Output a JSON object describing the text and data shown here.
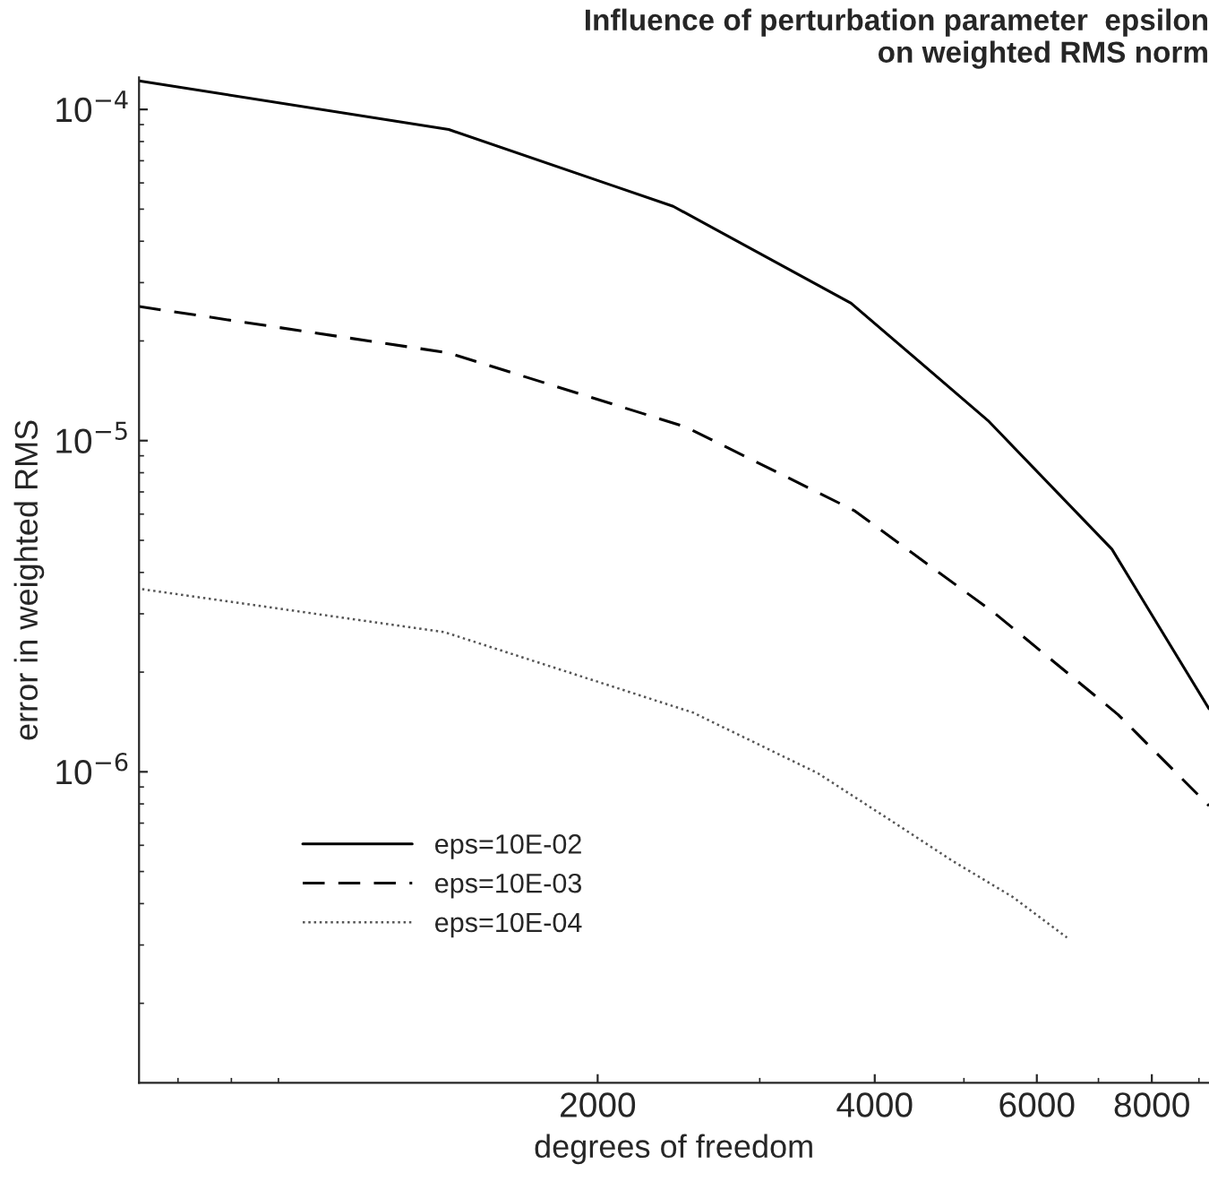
{
  "chart_data": {
    "type": "line",
    "title": "Influence of perturbation parameter  epsilon\non weighted RMS norm",
    "xlabel": "degrees of freedom",
    "ylabel": "error in weighted RMS",
    "log": "xy",
    "xlim": [
      635,
      9230
    ],
    "ylim": [
      1.15e-07,
      0.000125
    ],
    "xticks": [
      2000,
      4000,
      6000,
      8000
    ],
    "yticks": [
      {
        "value": 0.0001,
        "label": "10$^{−4}$"
      },
      {
        "value": 1e-05,
        "label": "10$^{−5}$"
      },
      {
        "value": 1e-06,
        "label": "10$^{−6}$"
      }
    ],
    "grid": false,
    "legend": "lower left",
    "marker": "none",
    "series": [
      {
        "name": "eps=10E-02",
        "color": "#000000",
        "line_style": "solid",
        "x": [
          635,
          1378,
          2073,
          2416,
          3770,
          5310,
          7240,
          9230
        ],
        "values": [
          0.000122,
          8.7e-05,
          5.9e-05,
          5.1e-05,
          2.6e-05,
          1.15e-05,
          4.7e-06,
          1.55e-06
        ]
      },
      {
        "name": "eps=10E-03",
        "color": "#000000",
        "line_style": "dashed",
        "x": [
          635,
          1378,
          2493,
          3800,
          5410,
          7350,
          9230
        ],
        "values": [
          2.54e-05,
          1.84e-05,
          1.1e-05,
          6.15e-06,
          3e-06,
          1.49e-06,
          7.9e-07
        ]
      },
      {
        "name": "eps=10E-04",
        "color": "#555555",
        "line_style": "dotted",
        "x": [
          640,
          1364,
          2538,
          3470,
          4240,
          4850,
          5640,
          6470
        ],
        "values": [
          3.56e-06,
          2.64e-06,
          1.51e-06,
          9.9e-07,
          6.9e-07,
          5.4e-07,
          4.2e-07,
          3.16e-07
        ]
      }
    ]
  }
}
